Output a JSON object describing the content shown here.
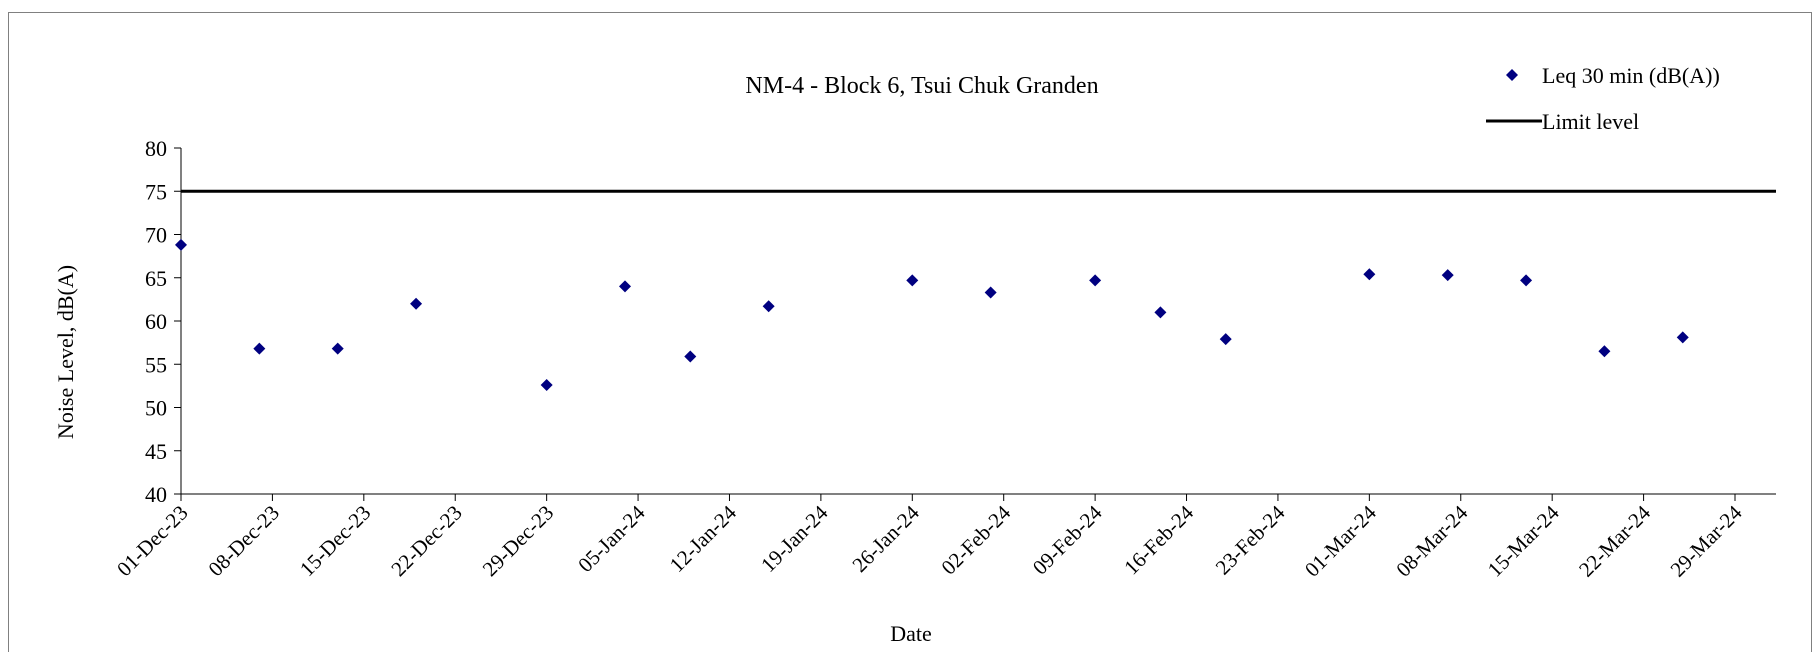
{
  "chart_data": {
    "type": "scatter",
    "title": "NM-4 - Block 6, Tsui Chuk Granden",
    "xlabel": "Date",
    "ylabel": "Noise Level, dB(A)",
    "ylim": [
      40,
      80
    ],
    "yticks": [
      40,
      45,
      50,
      55,
      60,
      65,
      70,
      75,
      80
    ],
    "xlim": [
      "2023-12-01",
      "2024-03-29"
    ],
    "xtick_labels": [
      "01-Dec-23",
      "08-Dec-23",
      "15-Dec-23",
      "22-Dec-23",
      "29-Dec-23",
      "05-Jan-24",
      "12-Jan-24",
      "19-Jan-24",
      "26-Jan-24",
      "02-Feb-24",
      "09-Feb-24",
      "16-Feb-24",
      "23-Feb-24",
      "01-Mar-24",
      "08-Mar-24",
      "15-Mar-24",
      "22-Mar-24",
      "29-Mar-24"
    ],
    "grid": false,
    "legend_position": "top-right",
    "series": [
      {
        "name": "Leq 30 min (dB(A))",
        "marker": "diamond",
        "color": "#000080",
        "points": [
          {
            "x": "2023-12-01",
            "y": 68.8
          },
          {
            "x": "2023-12-07",
            "y": 56.8
          },
          {
            "x": "2023-12-13",
            "y": 56.8
          },
          {
            "x": "2023-12-19",
            "y": 62.0
          },
          {
            "x": "2023-12-29",
            "y": 52.6
          },
          {
            "x": "2024-01-04",
            "y": 64.0
          },
          {
            "x": "2024-01-09",
            "y": 55.9
          },
          {
            "x": "2024-01-15",
            "y": 61.7
          },
          {
            "x": "2024-01-26",
            "y": 64.7
          },
          {
            "x": "2024-02-01",
            "y": 63.3
          },
          {
            "x": "2024-02-09",
            "y": 64.7
          },
          {
            "x": "2024-02-14",
            "y": 61.0
          },
          {
            "x": "2024-02-19",
            "y": 57.9
          },
          {
            "x": "2024-03-01",
            "y": 65.4
          },
          {
            "x": "2024-03-07",
            "y": 65.3
          },
          {
            "x": "2024-03-13",
            "y": 64.7
          },
          {
            "x": "2024-03-19",
            "y": 56.5
          },
          {
            "x": "2024-03-25",
            "y": 58.1
          }
        ]
      },
      {
        "name": "Limit level",
        "type": "line",
        "color": "#000000",
        "y": 75
      }
    ]
  }
}
